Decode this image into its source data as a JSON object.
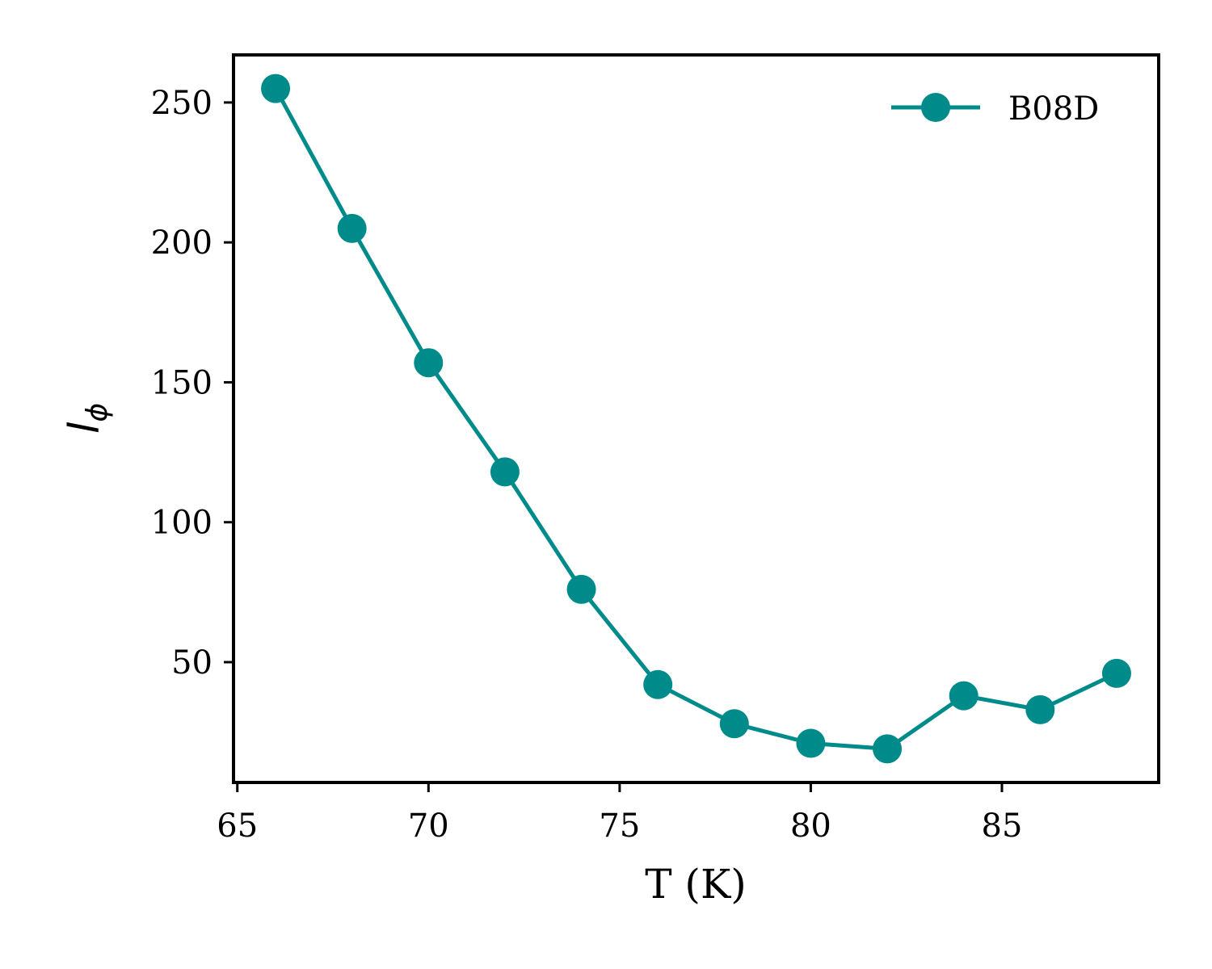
{
  "chart_data": {
    "type": "line",
    "title": "",
    "xlabel": "T (K)",
    "ylabel": {
      "main": "l",
      "subscript": "ϕ"
    },
    "xlim": [
      64.9,
      89.1
    ],
    "ylim": [
      7,
      267
    ],
    "xticks": [
      65,
      70,
      75,
      80,
      85
    ],
    "yticks": [
      50,
      100,
      150,
      200,
      250
    ],
    "grid": false,
    "legend_position": "top-right",
    "series": [
      {
        "name": "B08D",
        "color": "#008b8b",
        "marker": "circle",
        "x": [
          66,
          68,
          70,
          72,
          74,
          76,
          78,
          80,
          82,
          84,
          86,
          88
        ],
        "y": [
          255,
          205,
          157,
          118,
          76,
          42,
          28,
          21,
          19,
          38,
          33,
          46
        ]
      }
    ]
  }
}
